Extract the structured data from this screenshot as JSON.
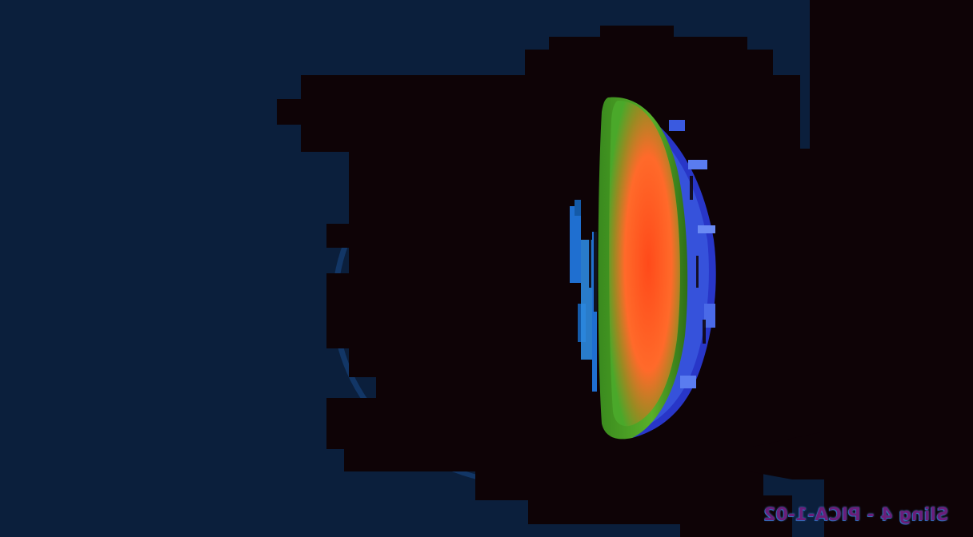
{
  "image": {
    "description_free": true,
    "colors": {
      "background": "#0b1f3c",
      "occlusion": "#0e0306",
      "plume_core": "#ff4a1a",
      "plume_mid": "#ff6a2a",
      "plume_edge": "#4aa82a",
      "halo": "#2c4ad8",
      "ring": "#1f6fd0",
      "caption_text": "#6a1e7a"
    }
  },
  "caption": {
    "text": "Sling 4 - PICA-1-02"
  }
}
